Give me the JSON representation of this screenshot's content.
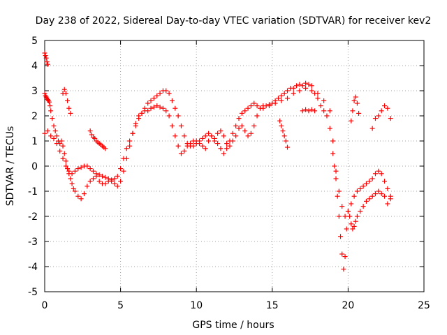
{
  "chart_data": {
    "type": "scatter",
    "title": "Day 238 of 2022, Sidereal Day-to-day VTEC variation (SDTVAR) for receiver kev2",
    "xlabel": "GPS time / hours",
    "ylabel": "SDTVAR / TECUs",
    "xlim": [
      0,
      25
    ],
    "ylim": [
      -5,
      5
    ],
    "xticks": [
      0,
      5,
      10,
      15,
      20,
      25
    ],
    "yticks": [
      -5,
      -4,
      -3,
      -2,
      -1,
      0,
      1,
      2,
      3,
      4,
      5
    ],
    "xtick_labels": [
      "0",
      "5",
      "10",
      "15",
      "20",
      "25"
    ],
    "ytick_labels": [
      "-5",
      "-4",
      "-3",
      "-2",
      "-1",
      "0",
      "1",
      "2",
      "3",
      "4",
      "5"
    ],
    "grid": true,
    "marker": "+",
    "color": "#ff0000",
    "series": [
      {
        "name": "SDTVAR",
        "x": [
          0.0,
          0.05,
          0.1,
          0.15,
          0.2,
          0.0,
          0.05,
          0.1,
          0.15,
          0.2,
          0.25,
          0.3,
          0.35,
          0.4,
          0.5,
          0.6,
          0.7,
          0.8,
          0.9,
          1.0,
          1.1,
          1.2,
          1.3,
          1.4,
          1.5,
          1.6,
          1.7,
          1.8,
          1.9,
          2.0,
          2.2,
          2.4,
          2.6,
          2.8,
          3.0,
          3.2,
          3.4,
          3.6,
          3.8,
          4.0,
          4.2,
          4.4,
          4.6,
          4.8,
          5.0,
          5.2,
          5.4,
          5.6,
          5.8,
          6.0,
          6.2,
          6.4,
          6.6,
          6.8,
          7.0,
          7.2,
          7.4,
          7.6,
          7.8,
          8.0,
          8.2,
          8.4,
          8.6,
          8.8,
          9.0,
          9.2,
          9.4,
          9.6,
          9.8,
          10.0,
          10.2,
          10.4,
          10.6,
          10.8,
          11.0,
          11.2,
          11.4,
          11.6,
          11.8,
          12.0,
          12.2,
          12.4,
          12.6,
          12.8,
          13.0,
          13.2,
          13.4,
          13.6,
          13.8,
          14.0,
          14.2,
          14.4,
          14.6,
          14.8,
          15.0,
          15.2,
          15.4,
          15.6,
          15.8,
          16.0,
          16.2,
          16.4,
          16.6,
          16.8,
          17.0,
          17.2,
          17.4,
          17.6,
          17.8,
          18.0,
          18.2,
          18.4,
          18.6,
          18.8,
          19.0,
          19.1,
          19.2,
          19.3,
          19.4,
          19.5,
          19.6,
          19.7,
          19.8,
          19.9,
          20.0,
          20.1,
          20.2,
          20.3,
          20.4,
          20.5,
          20.6,
          20.8,
          21.0,
          21.2,
          21.4,
          21.6,
          21.8,
          22.0,
          22.2,
          22.4,
          22.6,
          22.8,
          0.0,
          0.2,
          0.4,
          0.6,
          0.8,
          1.0,
          1.2,
          1.4,
          1.6,
          1.8,
          2.0,
          2.2,
          2.4,
          2.6,
          2.8,
          3.0,
          3.2,
          3.4,
          3.6,
          3.8,
          4.0,
          4.2,
          4.4,
          4.6,
          4.8,
          5.0,
          5.2,
          5.4,
          5.6,
          5.8,
          6.0,
          6.2,
          6.4,
          6.6,
          6.8,
          7.0,
          7.2,
          7.4,
          7.6,
          7.8,
          8.0,
          8.2,
          8.4,
          8.6,
          8.8,
          9.0,
          9.2,
          9.4,
          9.6,
          9.8,
          10.0,
          10.2,
          10.4,
          10.6,
          10.8,
          11.0,
          11.2,
          11.4,
          11.6,
          11.8,
          12.0,
          12.2,
          12.4,
          12.6,
          12.8,
          13.0,
          13.2,
          13.4,
          13.6,
          13.8,
          14.0,
          14.4,
          14.8,
          15.2,
          15.6,
          16.0,
          16.4,
          16.8,
          17.2,
          17.6,
          18.0,
          18.4,
          18.8,
          19.0,
          19.2,
          19.4,
          19.6,
          19.8,
          20.0,
          20.2,
          20.4,
          20.6,
          20.8,
          21.0,
          21.2,
          21.4,
          21.6,
          21.8,
          22.0,
          22.2,
          22.4,
          22.6,
          22.8,
          1.2,
          1.3,
          1.4,
          1.5,
          1.6,
          1.7,
          3.0,
          3.1,
          3.2,
          3.3,
          3.4,
          3.5,
          3.6,
          3.7,
          3.8,
          3.9,
          4.0,
          15.5,
          15.6,
          15.7,
          15.8,
          15.9,
          16.0,
          17.0,
          17.2,
          17.4,
          17.6,
          17.8,
          20.2,
          20.3,
          20.4,
          20.5,
          20.6,
          20.7,
          21.6,
          21.8,
          22.0,
          22.2,
          22.4,
          22.6,
          22.8
        ],
        "y": [
          4.5,
          4.4,
          4.3,
          4.15,
          4.05,
          2.9,
          2.8,
          2.75,
          2.7,
          2.65,
          2.6,
          2.55,
          2.4,
          2.2,
          1.9,
          1.6,
          1.4,
          1.2,
          1.0,
          0.9,
          1.0,
          0.8,
          0.5,
          0.2,
          -0.1,
          -0.3,
          -0.5,
          -0.7,
          -0.9,
          -1.0,
          -1.2,
          -1.3,
          -1.1,
          -0.8,
          -0.6,
          -0.5,
          -0.4,
          -0.6,
          -0.7,
          -0.7,
          -0.6,
          -0.6,
          -0.7,
          -0.8,
          -0.6,
          -0.2,
          0.3,
          0.8,
          1.3,
          1.7,
          2.0,
          2.1,
          2.2,
          2.2,
          2.3,
          2.35,
          2.4,
          2.35,
          2.3,
          2.2,
          2.0,
          1.6,
          1.2,
          0.8,
          0.5,
          0.6,
          0.8,
          0.9,
          1.0,
          1.0,
          0.9,
          0.8,
          0.7,
          1.0,
          1.2,
          1.1,
          1.3,
          1.4,
          1.2,
          0.9,
          0.8,
          1.0,
          1.2,
          1.5,
          1.6,
          1.4,
          1.2,
          1.3,
          1.6,
          2.0,
          2.3,
          2.4,
          2.4,
          2.45,
          2.5,
          2.6,
          2.7,
          2.8,
          2.9,
          3.0,
          3.1,
          3.1,
          3.2,
          3.25,
          3.2,
          3.3,
          3.25,
          3.0,
          2.9,
          2.7,
          2.4,
          2.2,
          2.0,
          1.5,
          0.5,
          0.0,
          -0.5,
          -1.2,
          -2.0,
          -2.8,
          -3.5,
          -4.1,
          -3.6,
          -2.5,
          -1.8,
          -2.0,
          -2.3,
          -2.5,
          -2.4,
          -2.2,
          -2.0,
          -1.8,
          -1.6,
          -1.4,
          -1.3,
          -1.2,
          -1.1,
          -1.0,
          -1.1,
          -1.2,
          -1.5,
          -1.2,
          1.3,
          1.4,
          1.2,
          1.1,
          0.9,
          0.6,
          0.3,
          0.0,
          -0.2,
          -0.3,
          -0.2,
          -0.1,
          -0.05,
          0.0,
          0.0,
          -0.1,
          -0.2,
          -0.3,
          -0.35,
          -0.4,
          -0.45,
          -0.5,
          -0.55,
          -0.5,
          -0.4,
          -0.1,
          0.3,
          0.7,
          1.0,
          1.3,
          1.6,
          1.9,
          2.1,
          2.3,
          2.5,
          2.6,
          2.7,
          2.8,
          2.9,
          3.0,
          3.0,
          2.9,
          2.6,
          2.3,
          2.0,
          1.6,
          1.2,
          0.9,
          0.8,
          0.8,
          0.9,
          1.0,
          1.1,
          1.2,
          1.3,
          1.2,
          1.0,
          0.9,
          0.7,
          0.5,
          0.7,
          1.0,
          1.3,
          1.6,
          1.9,
          2.1,
          2.2,
          2.3,
          2.4,
          2.5,
          2.4,
          2.3,
          2.4,
          2.5,
          2.6,
          2.7,
          2.9,
          3.0,
          3.1,
          3.2,
          2.9,
          2.6,
          2.2,
          1.0,
          -0.2,
          -1.0,
          -1.6,
          -2.0,
          -1.8,
          -1.5,
          -1.2,
          -1.0,
          -0.9,
          -0.8,
          -0.7,
          -0.6,
          -0.5,
          -0.3,
          -0.2,
          -0.3,
          -0.6,
          -0.9,
          -1.3,
          2.9,
          3.05,
          2.9,
          2.6,
          2.3,
          2.1,
          1.4,
          1.25,
          1.15,
          1.1,
          1.0,
          0.95,
          0.9,
          0.85,
          0.8,
          0.75,
          0.7,
          1.8,
          1.6,
          1.4,
          1.2,
          1.0,
          0.75,
          2.2,
          2.25,
          2.2,
          2.25,
          2.2,
          1.8,
          2.2,
          2.6,
          2.75,
          2.5,
          2.1,
          1.5,
          1.9,
          2.0,
          2.2,
          2.4,
          2.3,
          1.9
        ]
      }
    ]
  }
}
